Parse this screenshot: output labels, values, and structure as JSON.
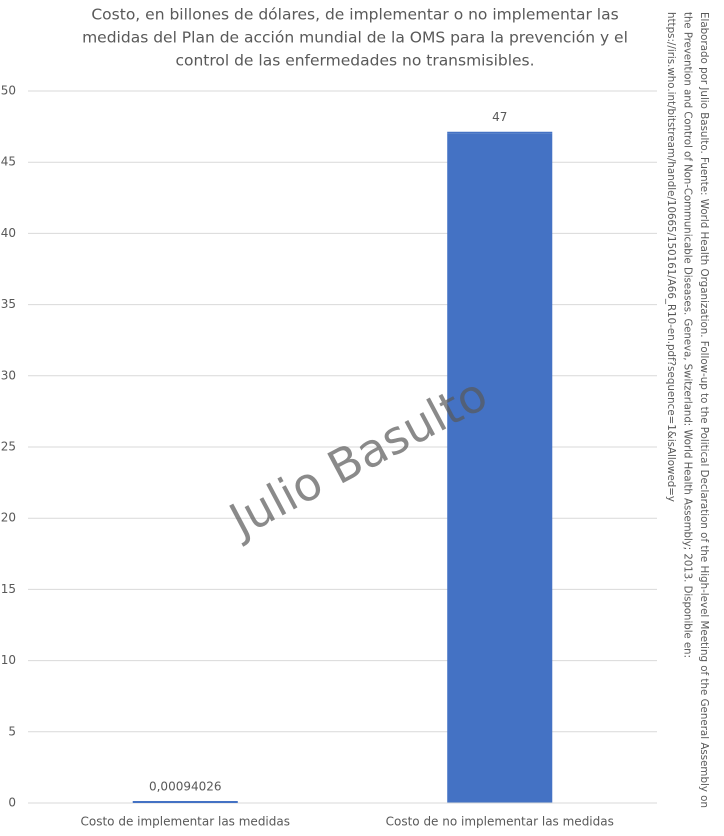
{
  "chart_data": {
    "type": "bar",
    "title": [
      "Costo, en billones de dólares, de implementar o no implementar las",
      "medidas del Plan de acción mundial de la OMS para la prevención y el",
      "control de las enfermedades no transmisibles."
    ],
    "categories": [
      "Costo de implementar las medidas",
      "Costo de no implementar las medidas"
    ],
    "values": [
      0.00094026,
      47
    ],
    "value_labels": [
      "0,00094026",
      "47"
    ],
    "color": "#4472c4",
    "ylim": [
      0,
      50
    ],
    "yticks": [
      0,
      5,
      10,
      15,
      20,
      25,
      30,
      35,
      40,
      45,
      50
    ],
    "grid": true,
    "watermark": "Julio Basulto",
    "source": [
      "Elaborado por Julio Basulto. Fuente: World Health Organization. Follow-up to the Political Declaration of the High-level Meeting of the General Assembly on",
      "the Prevention and Control of Non-Communicable Diseases. Geneva, Switzerland: World Health Assembly; 2013. Disponible en:",
      "https://iris.who.int/bitstream/handle/10665/150161/A66_R10-en.pdf?sequence=1&isAllowed=y"
    ]
  }
}
